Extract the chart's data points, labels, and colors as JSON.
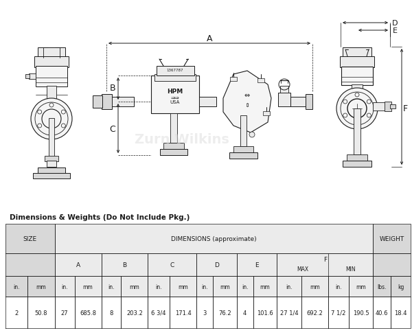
{
  "table_header": "Dimensions & Weights (Do Not Include Pkg.)",
  "dim_header": "DIMENSIONS (approximate)",
  "table_data": [
    "2",
    "50.8",
    "27",
    "685.8",
    "8",
    "203.2",
    "6 3/4",
    "171.4",
    "3",
    "76.2",
    "4",
    "101.6",
    "27 1/4",
    "692.2",
    "7 1/2",
    "190.5",
    "40.6",
    "18.4"
  ],
  "units": [
    "in.",
    "mm",
    "in.",
    "mm",
    "in.",
    "mm",
    "in.",
    "mm",
    "in.",
    "mm",
    "in.",
    "mm",
    "in.",
    "mm",
    "in.",
    "mm",
    "lbs.",
    "kg"
  ],
  "bg_color": "#ffffff",
  "line_color": "#1a1a1a",
  "gray1": "#d8d8d8",
  "gray2": "#ebebeb",
  "gray3": "#f5f5f5"
}
